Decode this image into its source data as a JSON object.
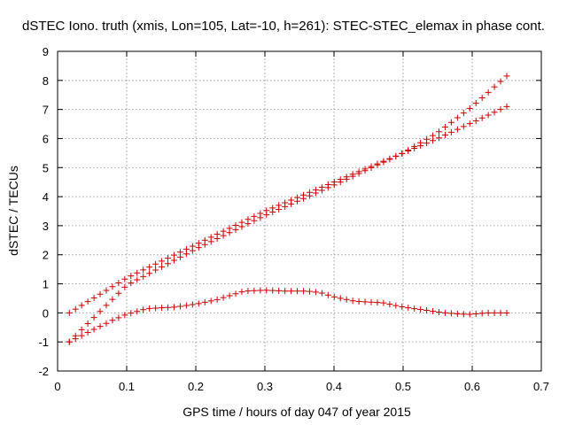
{
  "chart_data": {
    "type": "scatter",
    "title": "dSTEC Iono. truth (xmis, Lon=105, Lat=-10, h=261): STEC-STEC_elemax in phase cont.",
    "xlabel": "GPS time / hours of day 047 of year 2015",
    "ylabel": "dSTEC  / TECUs",
    "xlim": [
      0,
      0.7
    ],
    "ylim": [
      -2,
      9
    ],
    "xticks": [
      "0",
      "0.1",
      "0.2",
      "0.3",
      "0.4",
      "0.5",
      "0.6",
      "0.7"
    ],
    "yticks": [
      "-2",
      "-1",
      "0",
      "1",
      "2",
      "3",
      "4",
      "5",
      "6",
      "7",
      "8",
      "9"
    ],
    "grid": true,
    "marker": "+",
    "color": "#cc0000",
    "series": [
      {
        "x": [
          0.017,
          0.1,
          0.2,
          0.3,
          0.4,
          0.5,
          0.55,
          0.6,
          0.65
        ],
        "y": [
          0.0,
          1.2,
          2.35,
          3.5,
          4.5,
          5.5,
          6.2,
          7.1,
          8.15
        ]
      },
      {
        "x": [
          0.017,
          0.1,
          0.2,
          0.3,
          0.4,
          0.5,
          0.55,
          0.6,
          0.65
        ],
        "y": [
          -1.0,
          0.95,
          2.2,
          3.35,
          4.4,
          5.5,
          6.0,
          6.55,
          7.1
        ]
      },
      {
        "x": [
          0.017,
          0.05,
          0.08,
          0.1,
          0.13,
          0.17,
          0.2,
          0.23,
          0.27,
          0.3,
          0.33,
          0.36,
          0.38,
          0.4,
          0.43,
          0.47,
          0.5,
          0.53,
          0.56,
          0.59,
          0.6,
          0.62,
          0.65
        ],
        "y": [
          -1.0,
          -0.6,
          -0.25,
          -0.05,
          0.15,
          0.2,
          0.3,
          0.45,
          0.75,
          0.78,
          0.75,
          0.75,
          0.7,
          0.55,
          0.4,
          0.35,
          0.2,
          0.1,
          0.0,
          -0.05,
          -0.05,
          0.0,
          0.0
        ]
      }
    ]
  }
}
